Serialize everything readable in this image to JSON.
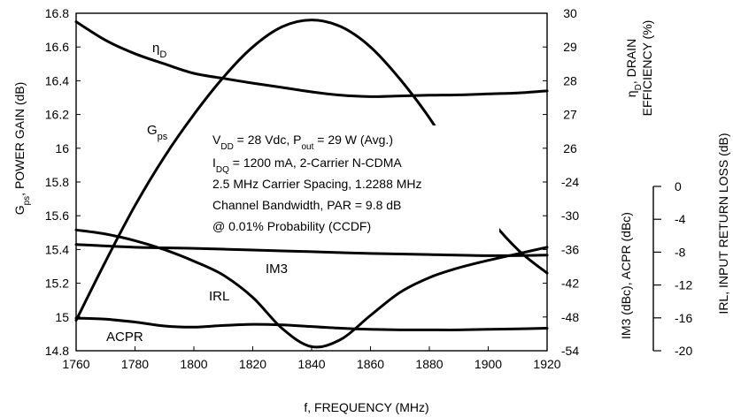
{
  "chart_data": {
    "type": "line",
    "x_label": "f, FREQUENCY (MHz)",
    "x_ticks": [
      "1760",
      "1780",
      "1800",
      "1820",
      "1840",
      "1860",
      "1880",
      "1900",
      "1920"
    ],
    "xlim": [
      1760,
      1920
    ],
    "left_axis": {
      "label_parts": [
        "G",
        "ps",
        ", POWER GAIN (dB)"
      ],
      "range": [
        14.8,
        16.8
      ],
      "ticks": [
        "16.8",
        "16.6",
        "16.4",
        "16.2",
        "16",
        "15.8",
        "15.6",
        "15.4",
        "15.2",
        "15",
        "14.8"
      ]
    },
    "right_axis_top": {
      "label_line1_parts": [
        "η",
        "D",
        ", DRAIN"
      ],
      "label_line2": "EFFICIENCY (%)",
      "range": [
        26,
        30
      ],
      "ticks": [
        "30",
        "29",
        "28",
        "27",
        "26"
      ]
    },
    "right_axis_bottom": {
      "label": "IM3 (dBc), ACPR (dBc)",
      "range": [
        -54,
        -24
      ],
      "ticks": [
        "-24",
        "-30",
        "-36",
        "-42",
        "-48",
        "-54"
      ]
    },
    "irl_axis": {
      "label": "IRL, INPUT RETURN LOSS (dB)",
      "range": [
        -20,
        0
      ],
      "ticks": [
        "0",
        "-4",
        "-8",
        "-12",
        "-16",
        "-20"
      ]
    },
    "annotation": {
      "line1": [
        "V",
        "DD",
        " = 28 Vdc, P",
        "out",
        " = 29 W (Avg.)"
      ],
      "line2": [
        "I",
        "DQ",
        " = 1200 mA, 2-Carrier N-CDMA"
      ],
      "line3": "2.5 MHz Carrier Spacing, 1.2288 MHz",
      "line4": "Channel Bandwidth, PAR = 9.8 dB",
      "line5": "@ 0.01% Probability (CCDF)"
    },
    "series": [
      {
        "name_parts": [
          "G",
          "ps"
        ],
        "axis": "left",
        "x": [
          1760,
          1770,
          1780,
          1790,
          1800,
          1810,
          1820,
          1830,
          1840,
          1850,
          1860,
          1870,
          1880,
          1890,
          1900,
          1910,
          1920
        ],
        "values": [
          14.98,
          15.33,
          15.66,
          15.95,
          16.2,
          16.42,
          16.6,
          16.72,
          16.76,
          16.72,
          16.6,
          16.41,
          16.18,
          15.9,
          15.6,
          15.4,
          15.26
        ]
      },
      {
        "name_parts": [
          "η",
          "D"
        ],
        "axis": "right_top",
        "x": [
          1760,
          1770,
          1780,
          1790,
          1800,
          1810,
          1820,
          1830,
          1840,
          1850,
          1860,
          1870,
          1880,
          1890,
          1900,
          1910,
          1920
        ],
        "values": [
          29.75,
          29.2,
          28.8,
          28.5,
          28.22,
          28.07,
          27.93,
          27.8,
          27.67,
          27.57,
          27.53,
          27.55,
          27.57,
          27.58,
          27.61,
          27.64,
          27.7
        ]
      },
      {
        "name": "IM3",
        "axis": "right_bottom",
        "x": [
          1760,
          1780,
          1800,
          1820,
          1840,
          1860,
          1880,
          1900,
          1920
        ],
        "values": [
          -35.1,
          -35.6,
          -35.8,
          -36.1,
          -36.4,
          -36.7,
          -36.9,
          -37.1,
          -37.0
        ]
      },
      {
        "name": "ACPR",
        "axis": "right_bottom",
        "x": [
          1760,
          1770,
          1780,
          1790,
          1800,
          1810,
          1820,
          1830,
          1840,
          1850,
          1860,
          1870,
          1880,
          1890,
          1900,
          1910,
          1920
        ],
        "values": [
          -48.2,
          -48.4,
          -48.9,
          -49.6,
          -49.8,
          -49.5,
          -49.3,
          -49.4,
          -49.7,
          -50.0,
          -50.2,
          -50.3,
          -50.3,
          -50.3,
          -50.2,
          -50.1,
          -50.0
        ]
      },
      {
        "name": "IRL",
        "axis": "irl",
        "x": [
          1760,
          1770,
          1780,
          1790,
          1800,
          1810,
          1820,
          1830,
          1840,
          1850,
          1860,
          1870,
          1880,
          1890,
          1900,
          1910,
          1920
        ],
        "values": [
          -5.3,
          -5.8,
          -6.6,
          -7.7,
          -9.1,
          -10.8,
          -13.5,
          -17.3,
          -19.5,
          -18.6,
          -15.7,
          -12.9,
          -11.1,
          -9.9,
          -9.0,
          -8.2,
          -7.4
        ]
      }
    ]
  }
}
